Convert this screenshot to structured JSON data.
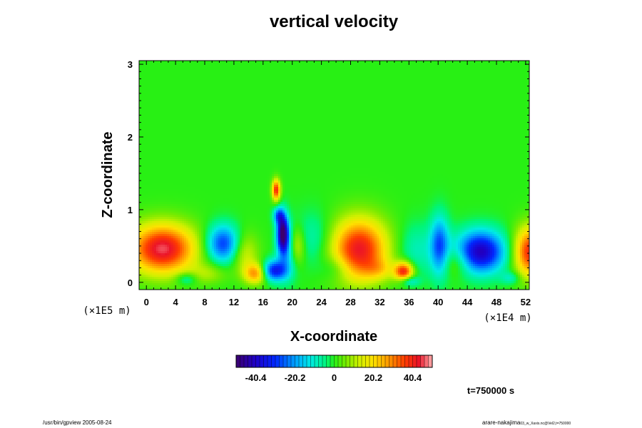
{
  "chart_data": {
    "type": "heatmap",
    "title": "vertical velocity",
    "xlabel": "X-coordinate",
    "ylabel": "Z-coordinate",
    "x_unit_label": "(×1E4 m)",
    "z_unit_label": "(×1E5 m)",
    "xlim": [
      -1,
      52.5
    ],
    "ylim": [
      -0.1,
      3.05
    ],
    "x_ticks": [
      "0",
      "4",
      "8",
      "12",
      "16",
      "20",
      "24",
      "28",
      "32",
      "36",
      "40",
      "44",
      "48",
      "52"
    ],
    "x_tick_values": [
      0,
      4,
      8,
      12,
      16,
      20,
      24,
      28,
      32,
      36,
      40,
      44,
      48,
      52
    ],
    "y_ticks": [
      "0",
      "1",
      "2",
      "3"
    ],
    "y_tick_values": [
      0,
      1,
      2,
      3
    ],
    "background_value": 0,
    "features": [
      {
        "x": 2.2,
        "z": 0.46,
        "sx": 3.2,
        "sz": 0.24,
        "v": 46
      },
      {
        "x": 10.5,
        "z": 0.53,
        "sx": 1.6,
        "sz": 0.18,
        "v": -30
      },
      {
        "x": 13.5,
        "z": 0.4,
        "sx": 1.3,
        "sz": 0.2,
        "v": 14
      },
      {
        "x": 15,
        "z": 0.12,
        "sx": 1.1,
        "sz": 0.1,
        "v": 28
      },
      {
        "x": 17.5,
        "z": 0.16,
        "sx": 1.2,
        "sz": 0.1,
        "v": -34
      },
      {
        "x": 18.7,
        "z": 0.68,
        "sx": 0.55,
        "sz": 0.18,
        "v": -48
      },
      {
        "x": 19.3,
        "z": 0.42,
        "sx": 0.9,
        "sz": 0.25,
        "v": -16
      },
      {
        "x": 17.8,
        "z": 1.27,
        "sx": 0.4,
        "sz": 0.1,
        "v": 40
      },
      {
        "x": 18.1,
        "z": 0.92,
        "sx": 0.5,
        "sz": 0.08,
        "v": -22
      },
      {
        "x": 20.6,
        "z": 0.5,
        "sx": 0.8,
        "sz": 0.18,
        "v": 16
      },
      {
        "x": 23,
        "z": 0.6,
        "sx": 1.8,
        "sz": 0.25,
        "v": -9
      },
      {
        "x": 29.2,
        "z": 0.45,
        "sx": 2.7,
        "sz": 0.3,
        "v": 43
      },
      {
        "x": 35.3,
        "z": 0.15,
        "sx": 0.9,
        "sz": 0.09,
        "v": 40
      },
      {
        "x": 37,
        "z": 0.45,
        "sx": 1.8,
        "sz": 0.25,
        "v": -9
      },
      {
        "x": 40.2,
        "z": 0.5,
        "sx": 0.9,
        "sz": 0.28,
        "v": -26
      },
      {
        "x": 45.8,
        "z": 0.42,
        "sx": 2.3,
        "sz": 0.2,
        "v": -42
      },
      {
        "x": 42.5,
        "z": 0.28,
        "sx": 1.4,
        "sz": 0.14,
        "v": 10
      },
      {
        "x": 52.6,
        "z": 0.42,
        "sx": 1.5,
        "sz": 0.24,
        "v": 40
      },
      {
        "x": 8.5,
        "z": 0.12,
        "sx": 1.8,
        "sz": 0.1,
        "v": 9
      },
      {
        "x": 26,
        "z": 0.2,
        "sx": 1.5,
        "sz": 0.12,
        "v": -8
      },
      {
        "x": 32,
        "z": 0.18,
        "sx": 1.5,
        "sz": 0.1,
        "v": 10
      },
      {
        "x": 5.5,
        "z": 0.05,
        "sx": 1,
        "sz": 0.06,
        "v": -12
      },
      {
        "x": 36,
        "z": 0.02,
        "sx": 0.9,
        "sz": 0.05,
        "v": -14
      },
      {
        "x": 50,
        "z": 0.06,
        "sx": 0.9,
        "sz": 0.06,
        "v": -10
      }
    ],
    "colorbar": {
      "ticks": [
        "-40.4",
        "-20.2",
        "0",
        "20.2",
        "40.4"
      ],
      "tick_values": [
        -40.4,
        -20.2,
        0,
        20.2,
        40.4
      ],
      "range": [
        -50.5,
        50.5
      ],
      "levels": 50
    }
  },
  "time_label": "t=750000 s",
  "footer": {
    "left": "/usr/bin/gpview 2005-08-24",
    "right_name": "arare-nakajima",
    "right_file": "03_w_Xaxis.nc@Vel2,t=750000"
  }
}
